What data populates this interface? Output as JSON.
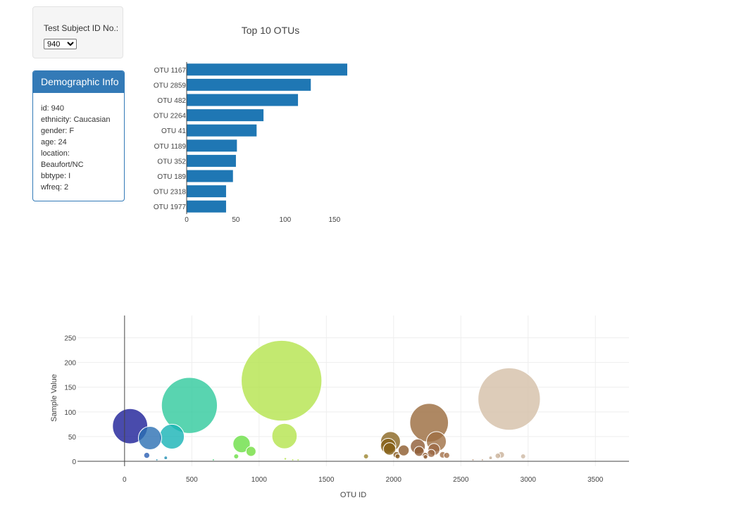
{
  "selector": {
    "label": "Test Subject ID No.:",
    "selected": "940"
  },
  "demographics": {
    "title": "Demographic Info",
    "lines": [
      "id: 940",
      "ethnicity: Caucasian",
      "gender: F",
      "age: 24",
      "location:",
      "Beaufort/NC",
      "bbtype: I",
      "wfreq: 2"
    ]
  },
  "chart_data": [
    {
      "type": "bar",
      "orientation": "horizontal",
      "title": "Top 10 OTUs",
      "categories": [
        "OTU 1167",
        "OTU 2859",
        "OTU 482",
        "OTU 2264",
        "OTU 41",
        "OTU 1189",
        "OTU 352",
        "OTU 189",
        "OTU 2318",
        "OTU 1977"
      ],
      "values": [
        163,
        126,
        113,
        78,
        71,
        51,
        50,
        47,
        40,
        40
      ],
      "xlim": [
        0,
        168
      ],
      "xticks": [
        0,
        50,
        100,
        150
      ],
      "color": "#1f77b4"
    },
    {
      "type": "scatter",
      "mode": "bubble",
      "xlabel": "OTU ID",
      "ylabel": "Sample Value",
      "xlim": [
        -350,
        3750
      ],
      "ylim": [
        -10,
        295
      ],
      "xticks": [
        0,
        500,
        1000,
        1500,
        2000,
        2500,
        3000,
        3500
      ],
      "yticks": [
        0,
        50,
        100,
        150,
        200,
        250
      ],
      "points": [
        {
          "x": 2859,
          "y": 126,
          "color": "#d4bfa8"
        },
        {
          "x": 1167,
          "y": 163,
          "color": "#b4e34c"
        },
        {
          "x": 482,
          "y": 113,
          "color": "#30c99c"
        },
        {
          "x": 41,
          "y": 71,
          "color": "#1c1e97"
        },
        {
          "x": 2264,
          "y": 78,
          "color": "#9a6a3c"
        },
        {
          "x": 189,
          "y": 47,
          "color": "#2a6fb3"
        },
        {
          "x": 352,
          "y": 50,
          "color": "#16b3b5"
        },
        {
          "x": 1189,
          "y": 51,
          "color": "#b4e34c"
        },
        {
          "x": 870,
          "y": 35,
          "color": "#6adf45"
        },
        {
          "x": 940,
          "y": 20,
          "color": "#72dd3f"
        },
        {
          "x": 2318,
          "y": 40,
          "color": "#9f6f43"
        },
        {
          "x": 1977,
          "y": 40,
          "color": "#8a6520"
        },
        {
          "x": 1960,
          "y": 31,
          "color": "#866016"
        },
        {
          "x": 1970,
          "y": 25,
          "color": "#876119"
        },
        {
          "x": 2075,
          "y": 22,
          "color": "#8c5a2c"
        },
        {
          "x": 2180,
          "y": 30,
          "color": "#8e5b35"
        },
        {
          "x": 2190,
          "y": 20,
          "color": "#8e5b35"
        },
        {
          "x": 2300,
          "y": 24,
          "color": "#9b6844"
        },
        {
          "x": 2280,
          "y": 16,
          "color": "#9b6844"
        },
        {
          "x": 2020,
          "y": 13,
          "color": "#8a5e22"
        },
        {
          "x": 2030,
          "y": 10,
          "color": "#8a5e22"
        },
        {
          "x": 2235,
          "y": 12,
          "color": "#94623a"
        },
        {
          "x": 2237,
          "y": 9,
          "color": "#94623a"
        },
        {
          "x": 2365,
          "y": 13,
          "color": "#a3714a"
        },
        {
          "x": 2395,
          "y": 12,
          "color": "#a3714a"
        },
        {
          "x": 1795,
          "y": 10,
          "color": "#9b8530"
        },
        {
          "x": 2800,
          "y": 13,
          "color": "#c9b29a"
        },
        {
          "x": 2775,
          "y": 11,
          "color": "#c9b29a"
        },
        {
          "x": 2963,
          "y": 10,
          "color": "#cdb8a2"
        },
        {
          "x": 2721,
          "y": 7,
          "color": "#c4ad95"
        },
        {
          "x": 165,
          "y": 12,
          "color": "#2a5fb3"
        },
        {
          "x": 306,
          "y": 7,
          "color": "#1f8fb3"
        },
        {
          "x": 830,
          "y": 10,
          "color": "#6adf45"
        },
        {
          "x": 1195,
          "y": 5,
          "color": "#b4e34c"
        },
        {
          "x": 1250,
          "y": 3,
          "color": "#b4e34c"
        },
        {
          "x": 1290,
          "y": 3,
          "color": "#b4e34c"
        },
        {
          "x": 240,
          "y": 3,
          "color": "#2a8fb3"
        },
        {
          "x": 660,
          "y": 3,
          "color": "#4ad07a"
        },
        {
          "x": 2590,
          "y": 3,
          "color": "#b8957a"
        },
        {
          "x": 2660,
          "y": 3,
          "color": "#bfa084"
        }
      ]
    }
  ]
}
